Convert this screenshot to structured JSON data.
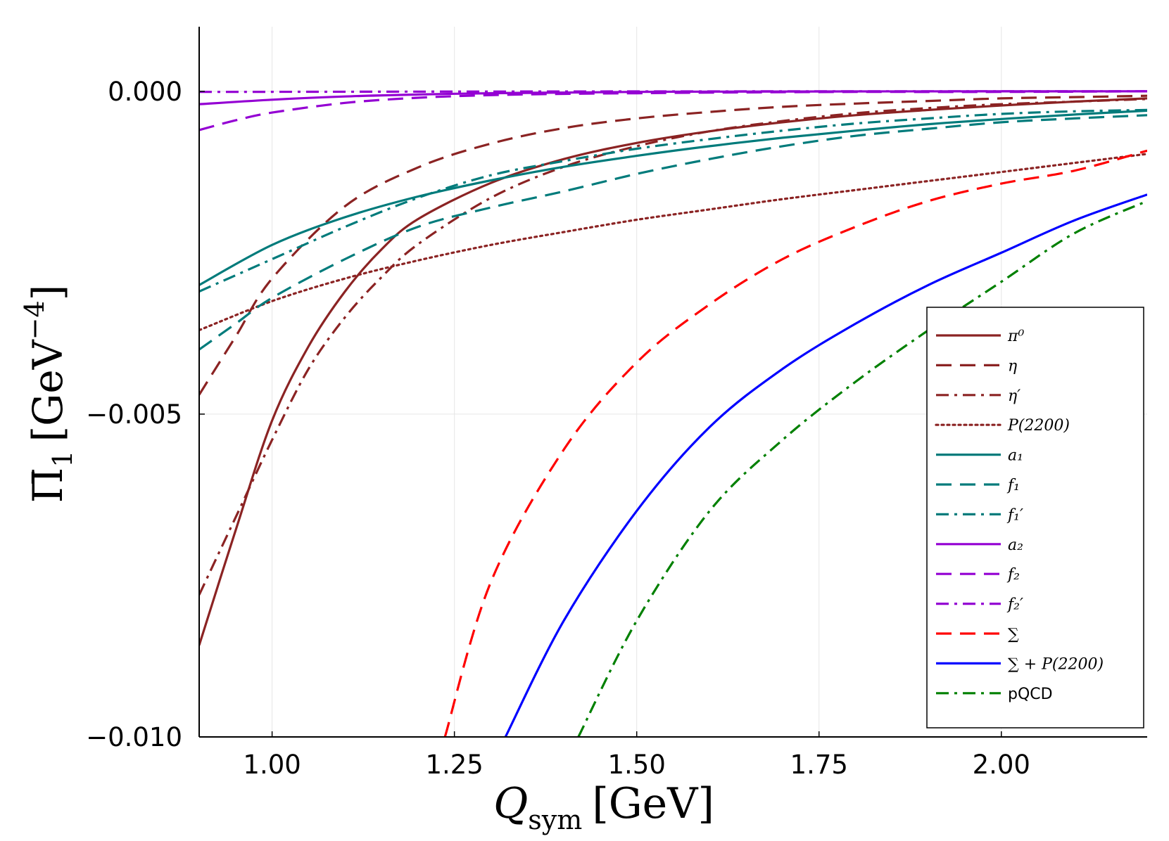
{
  "chart_data": {
    "type": "line",
    "xlabel_main": "Q",
    "xlabel_sub": "sym",
    "xlabel_unit": "[GeV]",
    "ylabel_main": "Π̄",
    "ylabel_sub": "1",
    "ylabel_unit": "[GeV",
    "ylabel_exp": "−4",
    "ylabel_close": "]",
    "xlim": [
      0.9,
      2.2
    ],
    "ylim": [
      -0.01,
      0.001
    ],
    "x_ticks": [
      1.0,
      1.25,
      1.5,
      1.75,
      2.0
    ],
    "x_tick_labels": [
      "1.00",
      "1.25",
      "1.50",
      "1.75",
      "2.00"
    ],
    "y_ticks": [
      0.0,
      -0.005,
      -0.01
    ],
    "y_tick_labels": [
      "0.000",
      "−0.005",
      "−0.010"
    ],
    "grid": true,
    "legend_position": "bottom-right",
    "series": [
      {
        "name": "π⁰",
        "color": "#8b2323",
        "dash": "solid",
        "x": [
          0.9,
          0.95,
          1.0,
          1.05,
          1.1,
          1.15,
          1.2,
          1.3,
          1.4,
          1.5,
          1.6,
          1.7,
          1.8,
          1.9,
          2.0,
          2.1,
          2.2
        ],
        "y": [
          -0.00858,
          -0.0068,
          -0.0051,
          -0.00395,
          -0.0031,
          -0.00245,
          -0.00198,
          -0.00142,
          -0.00105,
          -0.0008,
          -0.00062,
          -0.00048,
          -0.00037,
          -0.00029,
          -0.00022,
          -0.00016,
          -0.00011
        ]
      },
      {
        "name": "η",
        "color": "#8b2323",
        "dash": "long",
        "x": [
          0.9,
          0.95,
          1.0,
          1.1,
          1.2,
          1.3,
          1.4,
          1.5,
          1.6,
          1.7,
          1.8,
          1.9,
          2.0,
          2.1,
          2.2
        ],
        "y": [
          -0.0047,
          -0.0038,
          -0.0029,
          -0.00178,
          -0.00118,
          -0.00081,
          -0.00057,
          -0.00042,
          -0.00032,
          -0.00024,
          -0.00019,
          -0.00015,
          -0.00011,
          -9e-05,
          -7e-05
        ]
      },
      {
        "name": "η′",
        "color": "#8b2323",
        "dash": "dashdot",
        "x": [
          0.9,
          0.95,
          1.0,
          1.05,
          1.1,
          1.15,
          1.2,
          1.3,
          1.4,
          1.5,
          1.6,
          1.7,
          1.8,
          1.9,
          2.0,
          2.1,
          2.2
        ],
        "y": [
          -0.0078,
          -0.0066,
          -0.0054,
          -0.0043,
          -0.0035,
          -0.00288,
          -0.00237,
          -0.00165,
          -0.00117,
          -0.00085,
          -0.00062,
          -0.00046,
          -0.00034,
          -0.00026,
          -0.0002,
          -0.00016,
          -0.00012
        ]
      },
      {
        "name": "P(2200)",
        "color": "#8b2323",
        "dash": "dot",
        "x": [
          0.9,
          1.0,
          1.1,
          1.2,
          1.3,
          1.4,
          1.5,
          1.6,
          1.7,
          1.8,
          1.9,
          2.0,
          2.1,
          2.2
        ],
        "y": [
          -0.0037,
          -0.00325,
          -0.0029,
          -0.00262,
          -0.00238,
          -0.00218,
          -0.00199,
          -0.00183,
          -0.00167,
          -0.00153,
          -0.00139,
          -0.00125,
          -0.00111,
          -0.00097
        ]
      },
      {
        "name": "a₁",
        "color": "#007b7b",
        "dash": "solid",
        "x": [
          0.9,
          1.0,
          1.1,
          1.2,
          1.3,
          1.4,
          1.5,
          1.6,
          1.7,
          1.8,
          1.9,
          2.0,
          2.1,
          2.2
        ],
        "y": [
          -0.003,
          -0.00238,
          -0.00195,
          -0.00163,
          -0.00138,
          -0.00117,
          -0.001,
          -0.00085,
          -0.00072,
          -0.00061,
          -0.00051,
          -0.00043,
          -0.00036,
          -0.0003
        ]
      },
      {
        "name": "f₁",
        "color": "#007b7b",
        "dash": "long",
        "x": [
          0.9,
          0.95,
          1.0,
          1.1,
          1.2,
          1.3,
          1.4,
          1.5,
          1.6,
          1.7,
          1.8,
          1.9,
          2.0,
          2.1,
          2.2
        ],
        "y": [
          -0.004,
          -0.0036,
          -0.0032,
          -0.0026,
          -0.0021,
          -0.0018,
          -0.00155,
          -0.00128,
          -0.00105,
          -0.00085,
          -0.00069,
          -0.00058,
          -0.00048,
          -0.00042,
          -0.00037
        ]
      },
      {
        "name": "f₁′",
        "color": "#007b7b",
        "dash": "dashdot",
        "x": [
          0.9,
          1.0,
          1.1,
          1.2,
          1.3,
          1.4,
          1.5,
          1.6,
          1.7,
          1.8,
          1.9,
          2.0,
          2.1,
          2.2
        ],
        "y": [
          -0.0031,
          -0.0026,
          -0.0021,
          -0.00165,
          -0.0013,
          -0.00108,
          -0.00089,
          -0.00074,
          -0.00061,
          -0.0005,
          -0.00042,
          -0.00035,
          -0.00031,
          -0.00029
        ]
      },
      {
        "name": "a₂",
        "color": "#9400d3",
        "dash": "solid",
        "x": [
          0.9,
          1.0,
          1.1,
          1.2,
          1.3,
          1.4,
          1.5,
          1.6,
          1.8,
          2.0,
          2.2
        ],
        "y": [
          -0.0002,
          -0.00013,
          -8e-05,
          -5e-05,
          -3e-05,
          -2e-05,
          -1e-05,
          -5e-06,
          -2e-06,
          -1e-06,
          0.0
        ]
      },
      {
        "name": "f₂",
        "color": "#9400d3",
        "dash": "long",
        "x": [
          0.9,
          0.95,
          1.0,
          1.1,
          1.2,
          1.3,
          1.4,
          1.5,
          1.6,
          1.8,
          2.0,
          2.2
        ],
        "y": [
          -0.0006,
          -0.00045,
          -0.00033,
          -0.00018,
          -0.0001,
          -6e-05,
          -4e-05,
          -3e-05,
          -2e-05,
          -1e-05,
          -1e-05,
          0.0
        ]
      },
      {
        "name": "f₂′",
        "color": "#9400d3",
        "dash": "dashdot",
        "x": [
          0.9,
          1.2,
          1.5,
          1.8,
          2.2
        ],
        "y": [
          -1e-05,
          -5e-06,
          -2e-06,
          -1e-06,
          0.0
        ]
      },
      {
        "name": "∑",
        "color": "#ff0000",
        "dash": "long",
        "x": [
          1.237,
          1.3,
          1.4,
          1.5,
          1.6,
          1.7,
          1.8,
          1.9,
          2.0,
          2.1,
          2.2
        ],
        "y": [
          -0.01,
          -0.0076,
          -0.00555,
          -0.0042,
          -0.0033,
          -0.0026,
          -0.0021,
          -0.0017,
          -0.00143,
          -0.00123,
          -0.00092
        ]
      },
      {
        "name": "∑ + P(2200)",
        "color": "#0000ff",
        "dash": "solid",
        "x": [
          1.32,
          1.4,
          1.5,
          1.6,
          1.7,
          1.8,
          1.9,
          2.0,
          2.1,
          2.2
        ],
        "y": [
          -0.01,
          -0.0082,
          -0.0065,
          -0.0052,
          -0.0043,
          -0.0036,
          -0.003,
          -0.0025,
          -0.002,
          -0.0016
        ]
      },
      {
        "name": "pQCD",
        "color": "#008000",
        "dash": "dashdot",
        "x": [
          1.42,
          1.5,
          1.6,
          1.7,
          1.8,
          1.9,
          2.0,
          2.1,
          2.2
        ],
        "y": [
          -0.01,
          -0.0082,
          -0.0065,
          -0.0054,
          -0.0045,
          -0.0037,
          -0.00295,
          -0.0022,
          -0.0017
        ]
      }
    ]
  }
}
